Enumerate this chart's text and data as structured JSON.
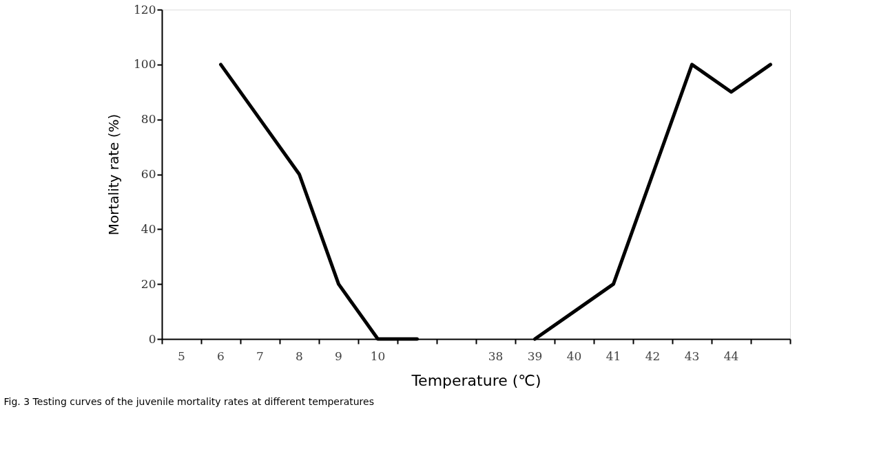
{
  "chart_data": {
    "type": "line",
    "xlabel": "Temperature (℃)",
    "ylabel": "Mortality rate (%)",
    "categories": [
      "5",
      "6",
      "7",
      "8",
      "9",
      "10",
      null,
      null,
      "38",
      "39",
      "40",
      "41",
      "42",
      "43",
      "44",
      null
    ],
    "values": [
      null,
      100,
      80,
      60,
      20,
      0,
      0,
      null,
      null,
      0,
      10,
      20,
      60,
      100,
      90,
      100
    ],
    "color": "#000000",
    "ylim": [
      0,
      120
    ],
    "yticks": [
      0,
      20,
      40,
      60,
      80,
      100,
      120
    ],
    "annotations": [
      "Fig. 3  Testing curves of the juvenile mortality rates at different temperatures"
    ]
  }
}
